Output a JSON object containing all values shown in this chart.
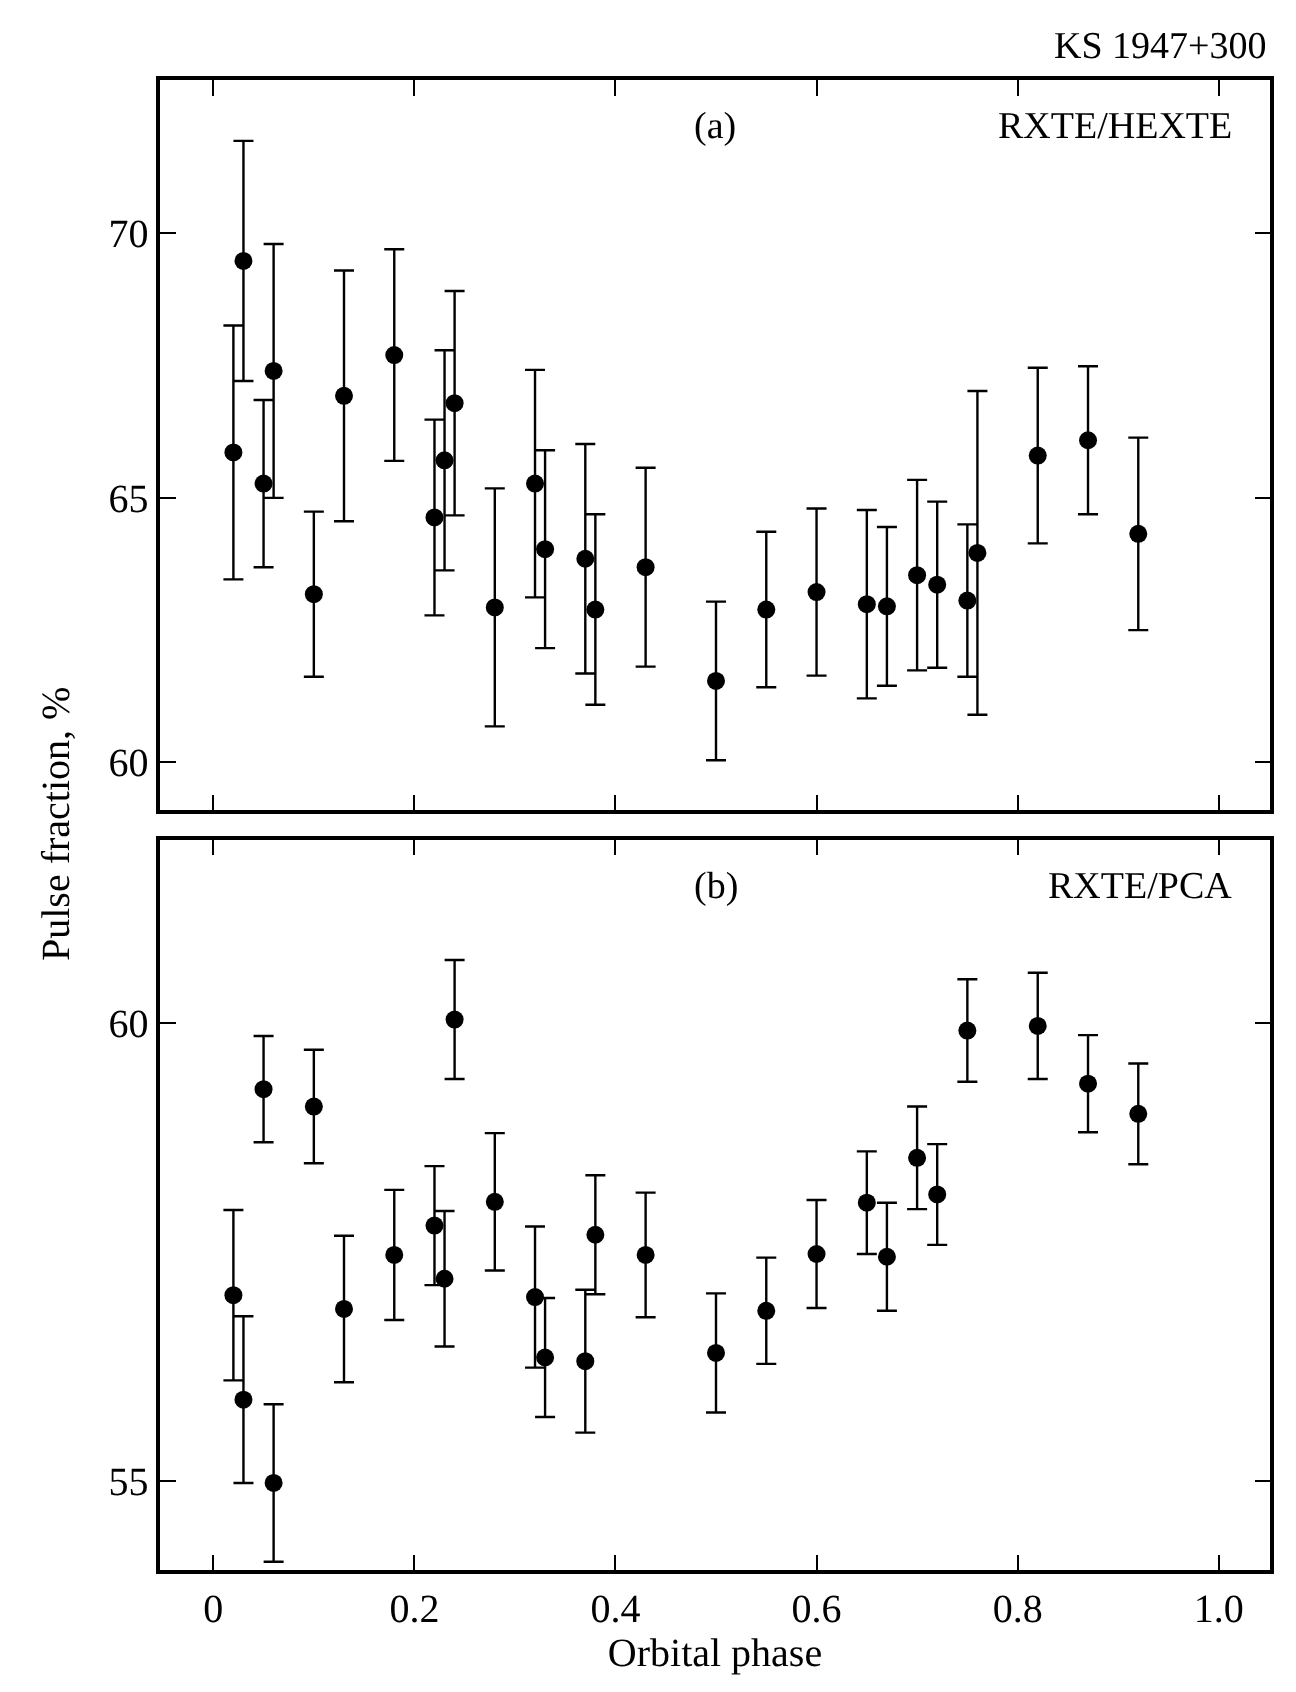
{
  "chart_data": [
    {
      "type": "scatter",
      "title": "KS 1947+300",
      "ylabel": "Pulse fraction, %",
      "annotations": [
        "(a)",
        "RXTE/HEXTE"
      ],
      "marker": "circle",
      "tick_labels": "y",
      "xlim": [
        -0.053,
        1.051
      ],
      "xticks": [
        0,
        0.2,
        0.4,
        0.6,
        0.8,
        1
      ],
      "ylim": [
        59.1,
        72.9
      ],
      "yticks": [
        60,
        65,
        70
      ],
      "series": [
        {
          "color": "#000000",
          "x": [
            0.02,
            0.03,
            0.05,
            0.06,
            0.1,
            0.13,
            0.18,
            0.22,
            0.23,
            0.24,
            0.28,
            0.32,
            0.33,
            0.37,
            0.38,
            0.43,
            0.5,
            0.55,
            0.6,
            0.65,
            0.67,
            0.7,
            0.72,
            0.75,
            0.76,
            0.82,
            0.87,
            0.92
          ],
          "values": [
            65.86,
            69.48,
            65.27,
            67.4,
            63.18,
            66.93,
            67.7,
            64.63,
            65.71,
            66.79,
            62.93,
            65.27,
            64.03,
            63.85,
            62.89,
            63.69,
            61.54,
            62.89,
            63.22,
            62.99,
            62.95,
            63.54,
            63.36,
            63.06,
            63.96,
            65.8,
            66.09,
            64.32
          ],
          "errors": [
            2.4,
            2.27,
            1.58,
            2.4,
            1.56,
            2.37,
            2.0,
            1.85,
            2.08,
            2.12,
            2.25,
            2.15,
            1.87,
            2.17,
            1.8,
            1.88,
            1.5,
            1.47,
            1.58,
            1.78,
            1.5,
            1.8,
            1.57,
            1.44,
            3.06,
            1.66,
            1.4,
            1.82
          ]
        }
      ]
    },
    {
      "type": "scatter",
      "xlabel": "Orbital phase",
      "annotations": [
        "(b)",
        "RXTE/PCA"
      ],
      "marker": "circle",
      "xlim": [
        -0.053,
        1.051
      ],
      "xticks": [
        {
          "value": 0,
          "label": "0"
        },
        0.2,
        0.4,
        0.6,
        0.8,
        {
          "value": 1,
          "label": "1.0"
        }
      ],
      "ylim": [
        54.03,
        62.0
      ],
      "yticks": [
        55,
        60
      ],
      "series": [
        {
          "color": "#000000",
          "x": [
            0.02,
            0.03,
            0.05,
            0.06,
            0.1,
            0.13,
            0.18,
            0.22,
            0.23,
            0.24,
            0.28,
            0.32,
            0.33,
            0.37,
            0.38,
            0.43,
            0.5,
            0.55,
            0.6,
            0.65,
            0.67,
            0.7,
            0.72,
            0.75,
            0.82,
            0.87,
            0.92
          ],
          "values": [
            57.03,
            55.89,
            59.28,
            54.98,
            59.09,
            56.88,
            57.47,
            57.79,
            57.21,
            60.04,
            58.05,
            57.01,
            56.35,
            56.31,
            57.69,
            57.47,
            56.4,
            56.86,
            57.48,
            58.04,
            57.45,
            58.53,
            58.13,
            59.92,
            59.97,
            59.34,
            59.01
          ],
          "errors": [
            0.93,
            0.91,
            0.58,
            0.86,
            0.62,
            0.8,
            0.71,
            0.65,
            0.74,
            0.65,
            0.75,
            0.77,
            0.65,
            0.78,
            0.65,
            0.68,
            0.65,
            0.58,
            0.59,
            0.56,
            0.59,
            0.56,
            0.55,
            0.56,
            0.58,
            0.53,
            0.55
          ]
        }
      ]
    }
  ]
}
